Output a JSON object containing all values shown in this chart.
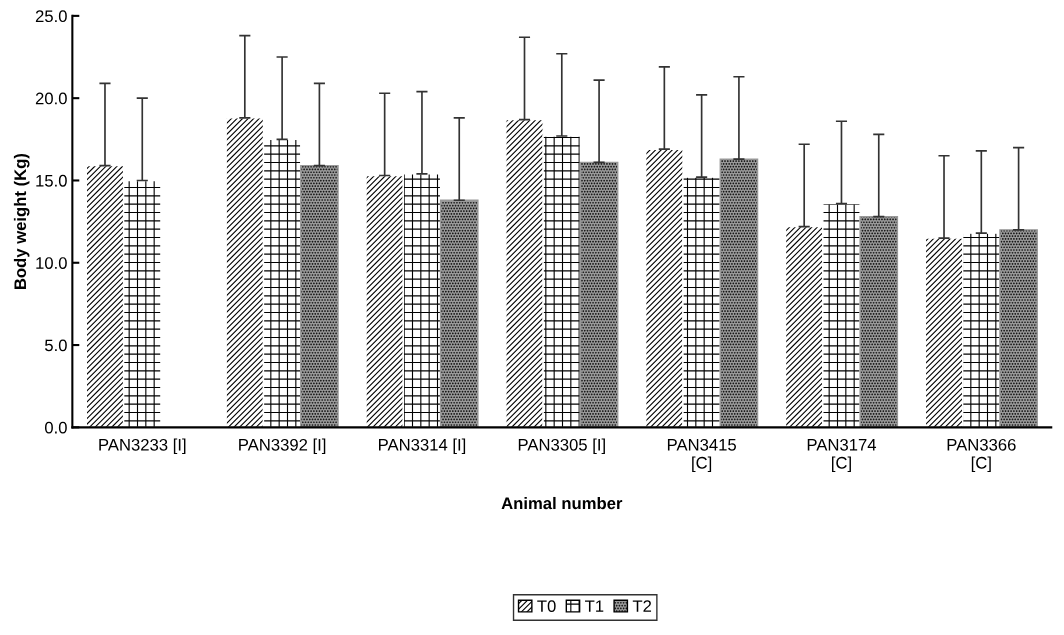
{
  "chart_data": {
    "type": "bar",
    "xlabel": "Animal number",
    "ylabel": "Body weight (Kg)",
    "categories": [
      "PAN3233 [I]",
      "PAN3392 [I]",
      "PAN3314 [I]",
      "PAN3305 [I]",
      "PAN3415\n[C]",
      "PAN3174\n[C]",
      "PAN3366\n[C]"
    ],
    "series": [
      {
        "name": "T0",
        "color": "#ffffff",
        "values": [
          15.9,
          18.8,
          15.3,
          18.7,
          16.9,
          12.2,
          11.5
        ],
        "errors": [
          [
            15.9,
            20.9
          ],
          [
            18.8,
            23.8
          ],
          [
            15.3,
            20.3
          ],
          [
            18.7,
            23.7
          ],
          [
            16.9,
            21.9
          ],
          [
            12.2,
            17.2
          ],
          [
            11.5,
            16.5
          ]
        ]
      },
      {
        "name": "T1",
        "color": "#ffffff",
        "values": [
          15.0,
          17.5,
          15.4,
          17.7,
          15.2,
          13.6,
          11.8
        ],
        "errors": [
          [
            15.0,
            20.0
          ],
          [
            17.5,
            22.5
          ],
          [
            15.4,
            20.4
          ],
          [
            17.7,
            22.7
          ],
          [
            15.2,
            20.2
          ],
          [
            13.6,
            18.6
          ],
          [
            11.8,
            16.8
          ]
        ]
      },
      {
        "name": "T2",
        "color": "#999999",
        "values": [
          null,
          15.9,
          13.8,
          16.1,
          16.3,
          12.8,
          12.0
        ],
        "errors": [
          null,
          [
            15.9,
            20.9
          ],
          [
            13.8,
            18.8
          ],
          [
            16.1,
            21.1
          ],
          [
            16.3,
            21.3
          ],
          [
            12.8,
            17.8
          ],
          [
            12.0,
            17.0
          ]
        ]
      }
    ],
    "ylim": [
      0,
      25
    ],
    "yticks": [
      {
        "value": 0,
        "label": "0.0"
      },
      {
        "value": 5,
        "label": "5.0"
      },
      {
        "value": 10,
        "label": "10.0"
      },
      {
        "value": 15,
        "label": "15.0"
      },
      {
        "value": 20,
        "label": "20.0"
      },
      {
        "value": 25,
        "label": "25.0"
      }
    ],
    "grid": false,
    "legend": "bottom"
  }
}
